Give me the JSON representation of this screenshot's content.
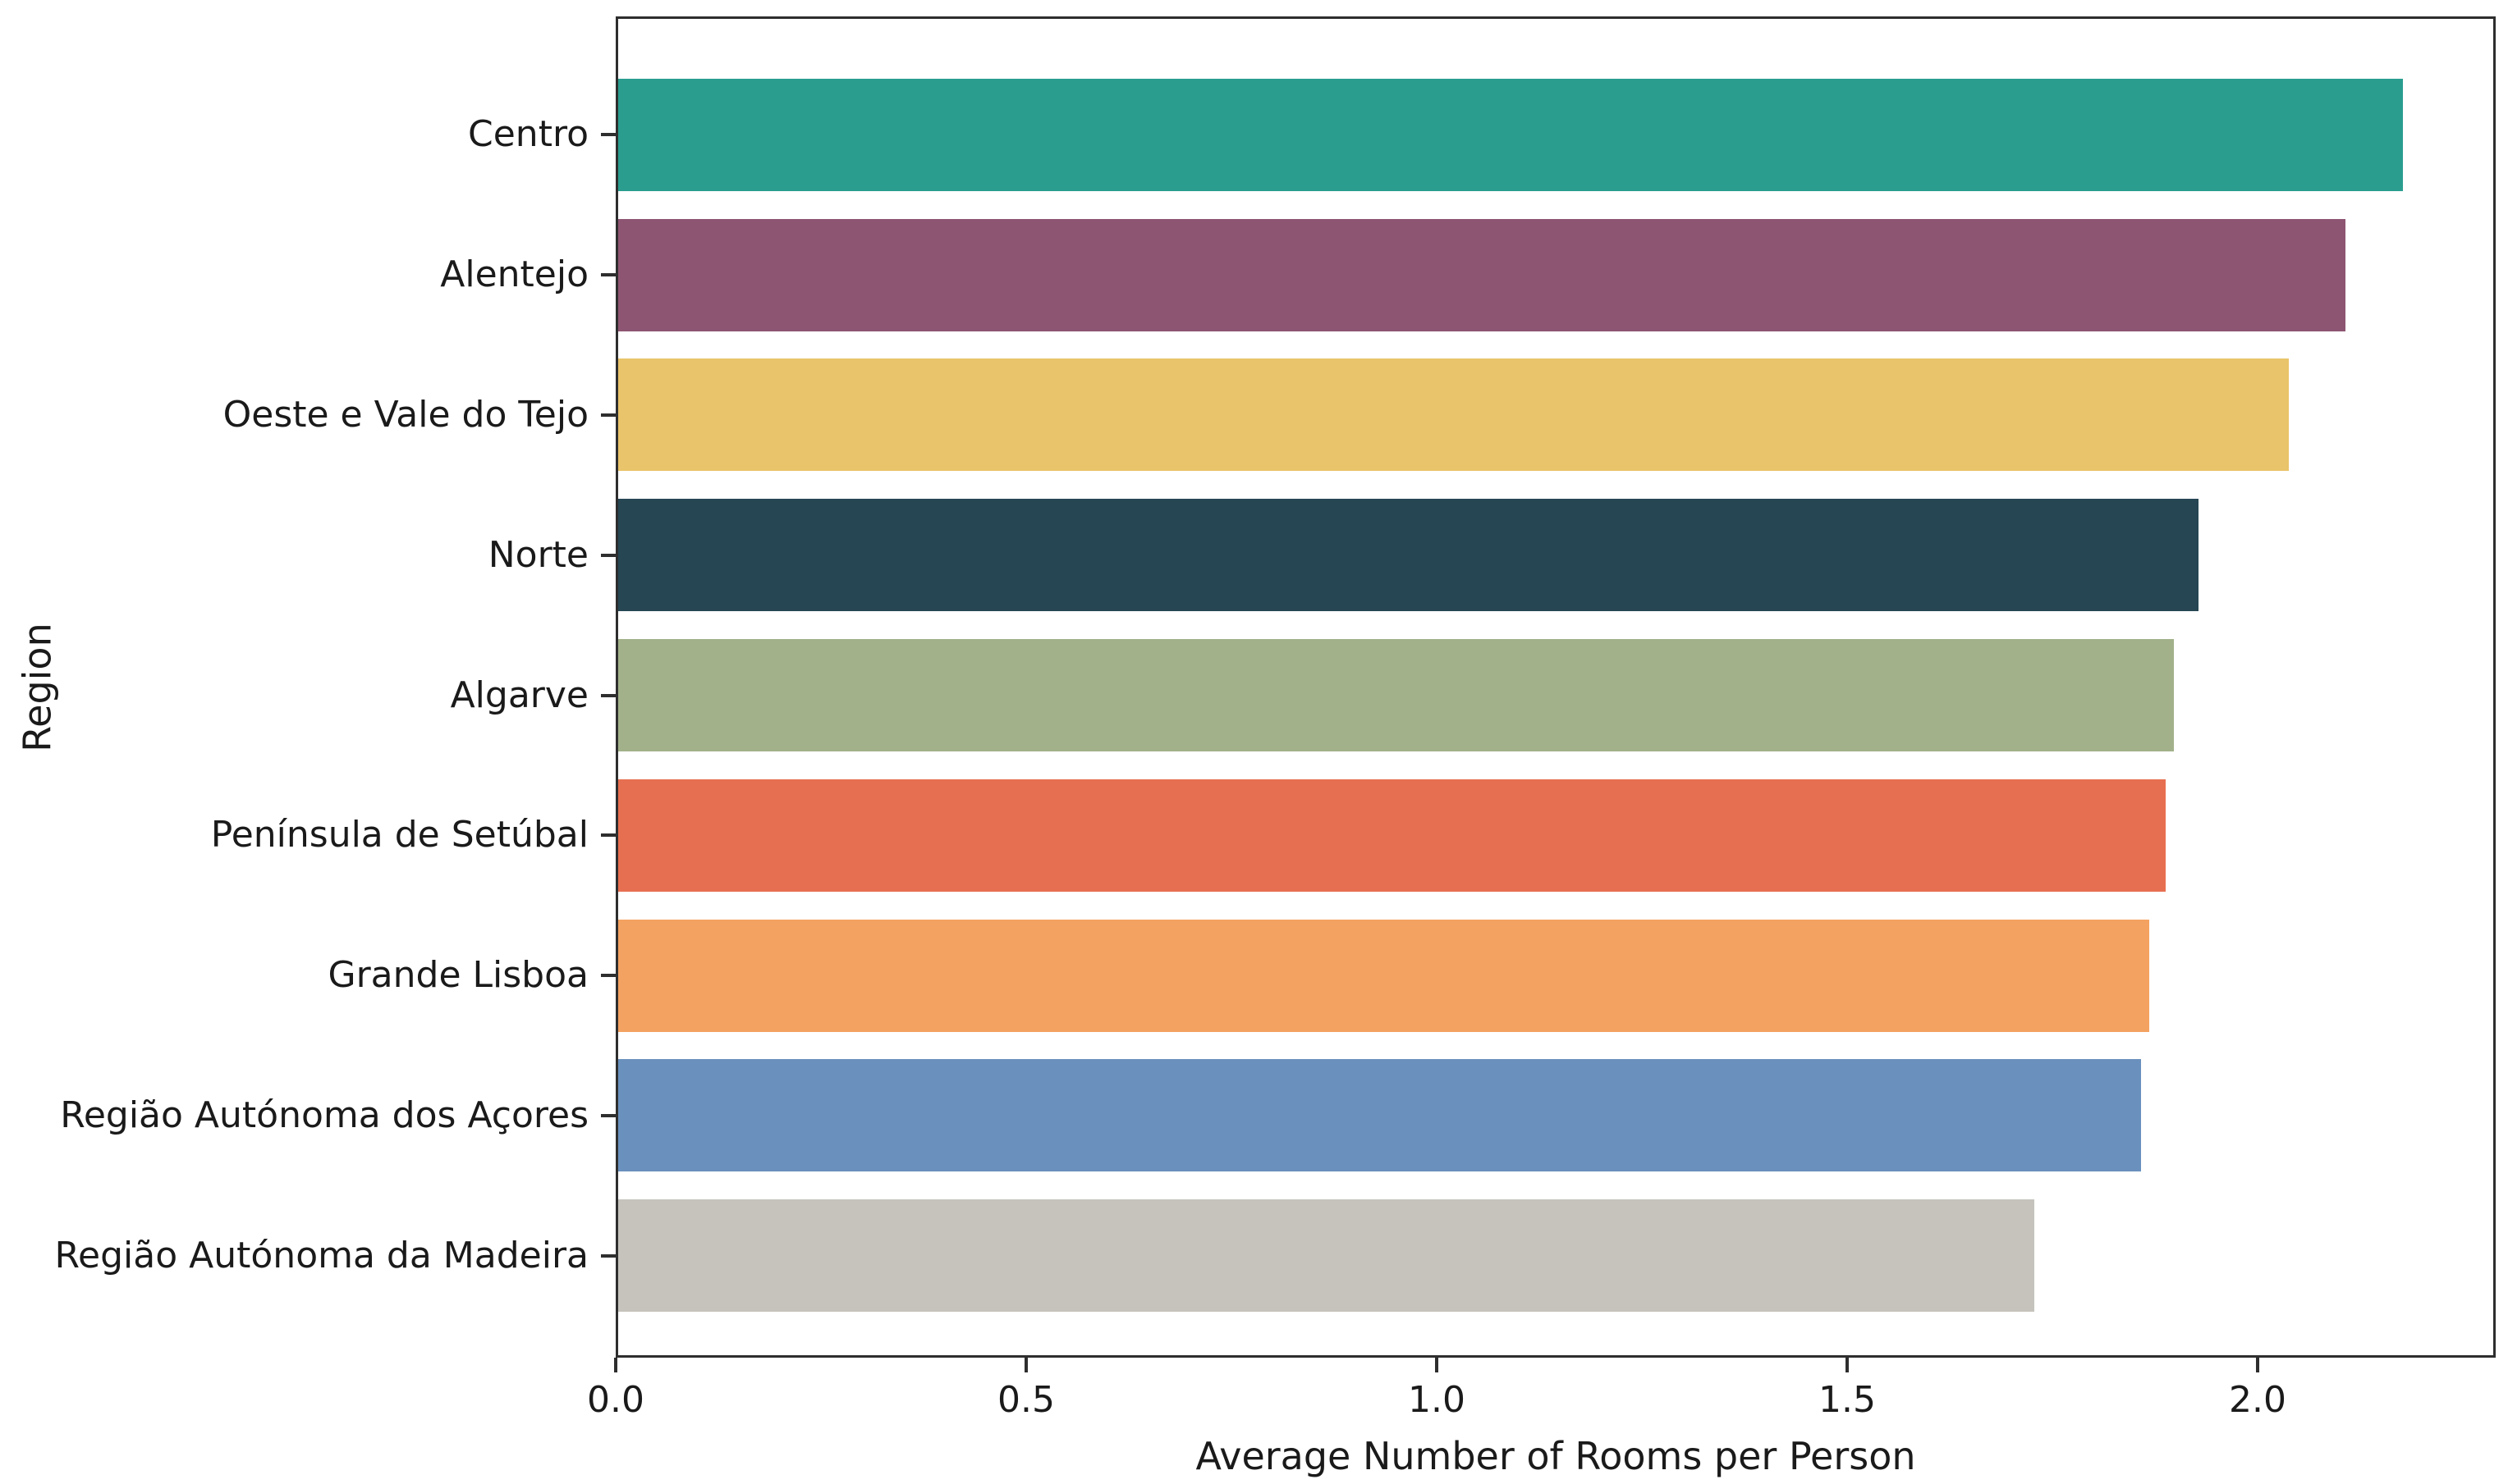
{
  "chart_data": {
    "type": "bar",
    "orientation": "horizontal",
    "xlabel": "Average Number of Rooms per Person",
    "ylabel": "Region",
    "xlim": [
      0,
      2.29
    ],
    "x_ticks": [
      0.0,
      0.5,
      1.0,
      1.5,
      2.0
    ],
    "x_tick_labels": [
      "0.0",
      "0.5",
      "1.0",
      "1.5",
      "2.0"
    ],
    "grid": false,
    "legend": null,
    "categories": [
      "Centro",
      "Alentejo",
      "Oeste e Vale do Tejo",
      "Norte",
      "Algarve",
      "Península de Setúbal",
      "Grande Lisboa",
      "Região Autónoma dos Açores",
      "Região Autónoma da Madeira"
    ],
    "values": [
      2.18,
      2.11,
      2.04,
      1.93,
      1.9,
      1.89,
      1.87,
      1.86,
      1.73
    ],
    "bar_colors": [
      "#2a9d8f",
      "#8e5572",
      "#e9c46a",
      "#264653",
      "#a2b18a",
      "#e76f51",
      "#f4a261",
      "#6a91be",
      "#c5c3bc"
    ],
    "spine_color": "#2e2e2e",
    "text_color": "#1a1a1a",
    "background_color": "#ffffff"
  }
}
